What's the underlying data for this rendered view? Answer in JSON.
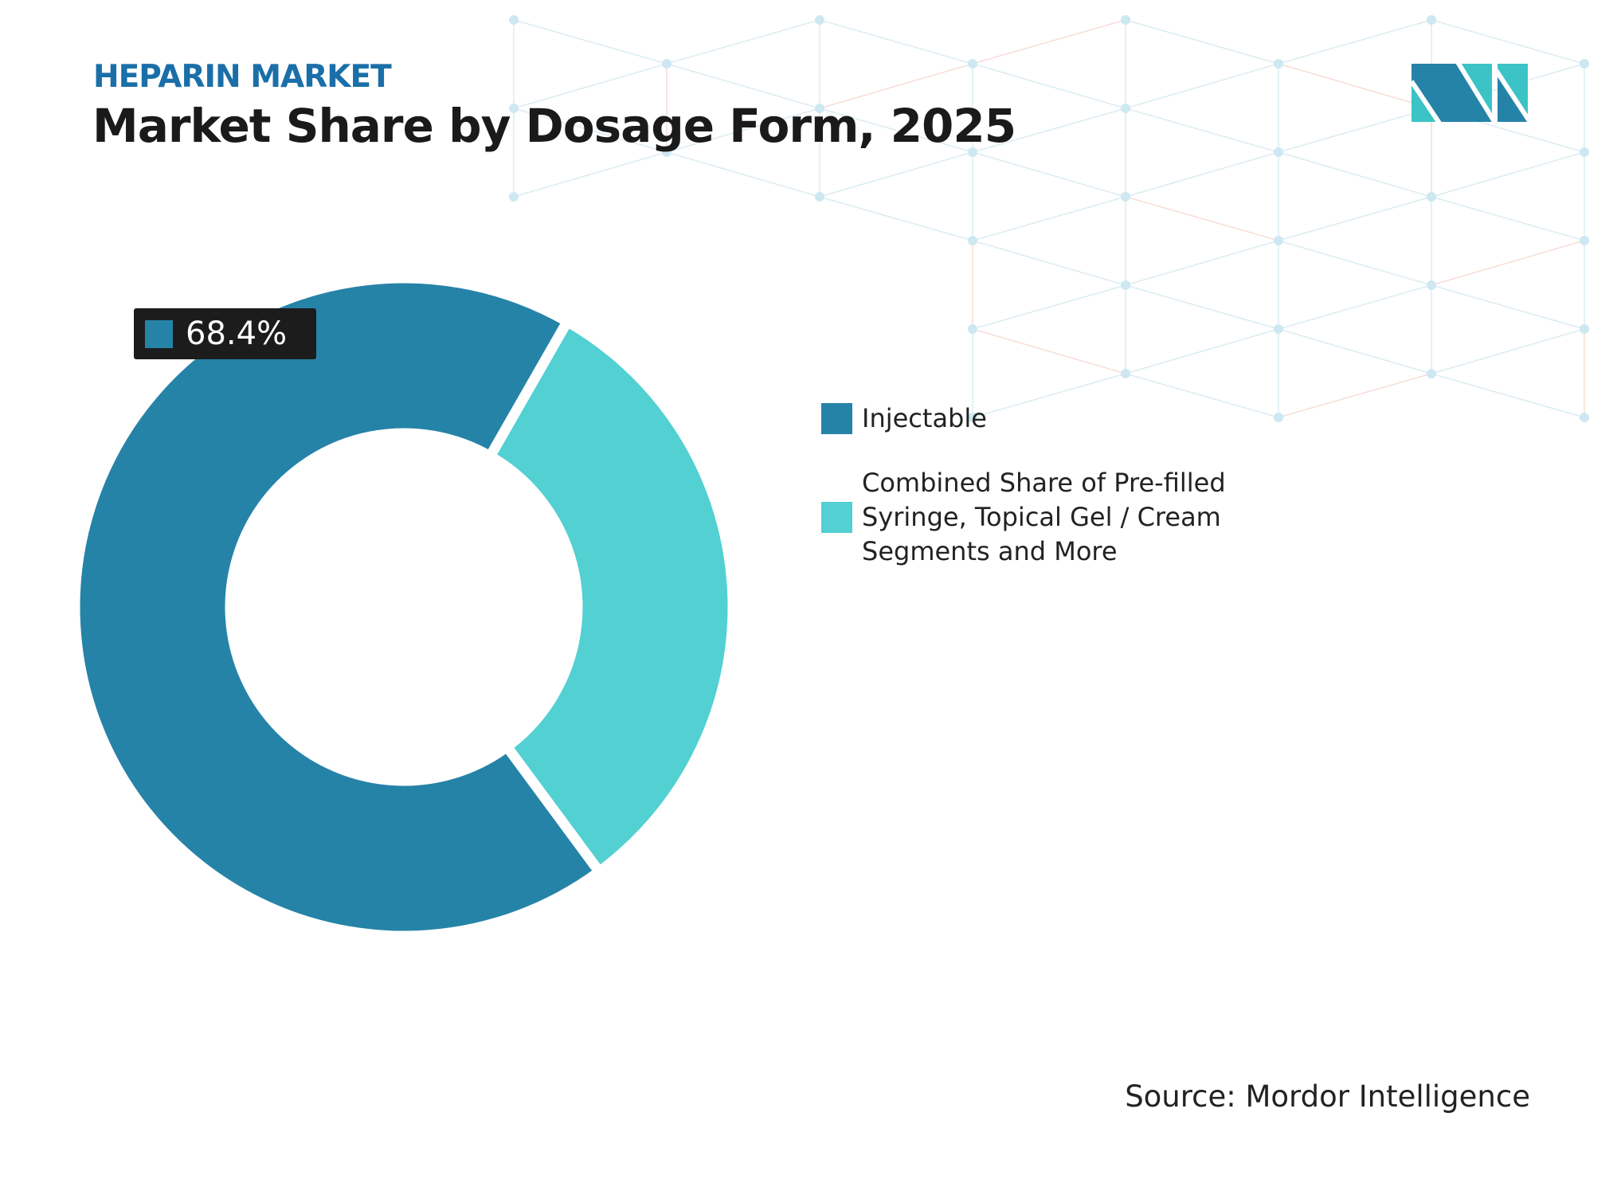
{
  "header": {
    "kicker": "HEPARIN MARKET",
    "title": "Market Share by Dosage Form, 2025"
  },
  "source": "Source: Mordor Intelligence",
  "logo": {
    "name": "mordor-intelligence-logo",
    "text": "MI"
  },
  "colors": {
    "injectable": "#2683a8",
    "other": "#52d0d2",
    "kicker": "#1a6fa8"
  },
  "chart_data": {
    "type": "pie",
    "variant": "donut",
    "title": "Market Share by Dosage Form, 2025",
    "categories": [
      "Injectable",
      "Combined Share of Pre-filled Syringe, Topical Gel / Cream Segments and More"
    ],
    "values": [
      68.4,
      31.6
    ],
    "unit": "%",
    "data_labels": [
      "68.4%"
    ],
    "legend_position": "right",
    "colors": [
      "#2683a8",
      "#52d0d2"
    ]
  }
}
